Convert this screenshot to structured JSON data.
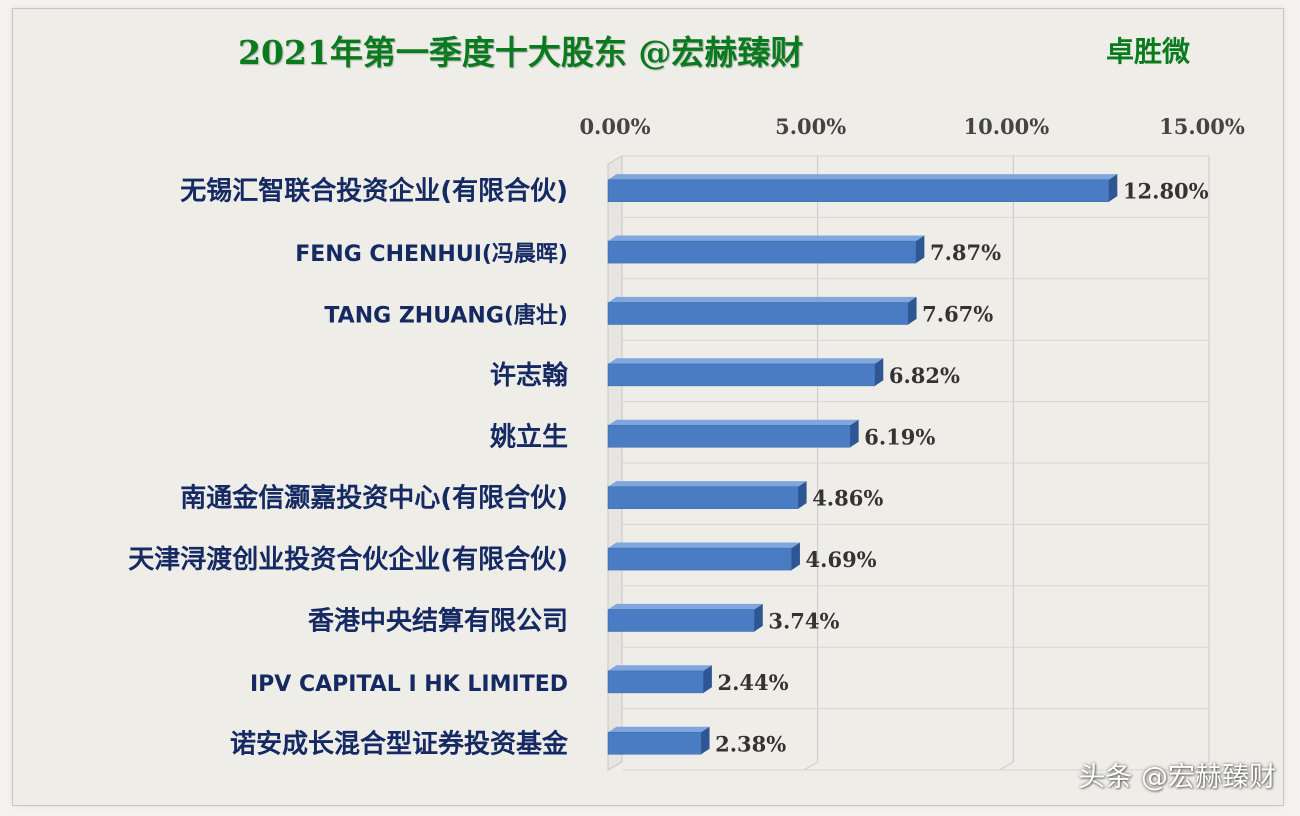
{
  "header": {
    "title": "2021年第一季度十大股东 @宏赫臻财",
    "author": "卓胜微"
  },
  "watermark": "头条 @宏赫臻财",
  "chart_data": {
    "type": "bar",
    "orientation": "horizontal",
    "title": "2021年第一季度十大股东 @宏赫臻财",
    "xlabel": "",
    "ylabel": "",
    "xlim": [
      0,
      15
    ],
    "x_ticks": [
      "0.00%",
      "5.00%",
      "10.00%",
      "15.00%"
    ],
    "x_tick_values": [
      0,
      5,
      10,
      15
    ],
    "x_axis_position": "top",
    "grid": true,
    "categories": [
      "无锡汇智联合投资企业(有限合伙)",
      "FENG CHENHUI(冯晨晖)",
      "TANG ZHUANG(唐壮)",
      "许志翰",
      "姚立生",
      "南通金信灏嘉投资中心(有限合伙)",
      "天津浔渡创业投资合伙企业(有限合伙)",
      "香港中央结算有限公司",
      "IPV CAPITAL I HK LIMITED",
      "诺安成长混合型证券投资基金"
    ],
    "values": [
      12.8,
      7.87,
      7.67,
      6.82,
      6.19,
      4.86,
      4.69,
      3.74,
      2.44,
      2.38
    ],
    "data_labels": [
      "12.80%",
      "7.87%",
      "7.67%",
      "6.82%",
      "6.19%",
      "4.86%",
      "4.69%",
      "3.74%",
      "2.44%",
      "2.38%"
    ],
    "colors": {
      "bar_front": "#4a7cc3",
      "bar_top": "#7fa6dd",
      "bar_side": "#2d5693",
      "grid": "#c8c8c8"
    }
  }
}
